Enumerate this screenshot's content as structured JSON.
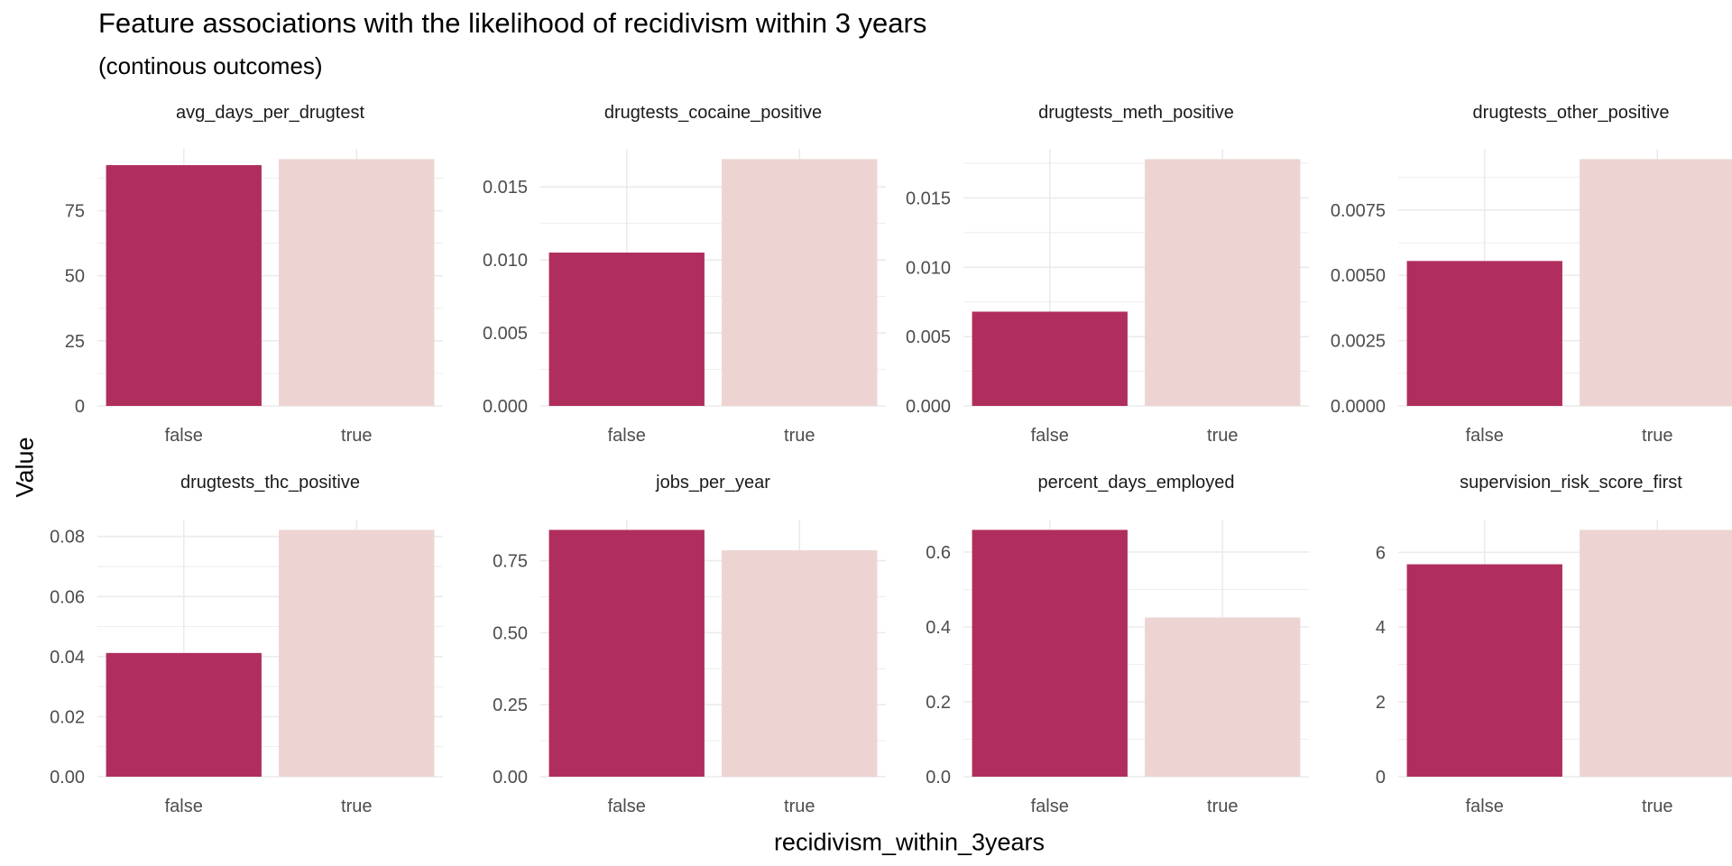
{
  "title": "Feature associations with the likelihood of recidivism within 3 years",
  "subtitle": "(continous outcomes)",
  "xlabel": "recidivism_within_3years",
  "ylabel": "Value",
  "colors": {
    "false": "#B02E5E",
    "true": "#EDD4D2",
    "grid": "#EBEBEB"
  },
  "chart_data": {
    "type": "bar",
    "categories": [
      "false",
      "true"
    ],
    "grid": true,
    "legend": "none",
    "facets": [
      {
        "name": "avg_days_per_drugtest",
        "values": [
          92.5,
          94.8
        ],
        "ylim": [
          0,
          94.8
        ],
        "ticks": [
          {
            "v": 0,
            "label": "0"
          },
          {
            "v": 25,
            "label": "25"
          },
          {
            "v": 50,
            "label": "50"
          },
          {
            "v": 75,
            "label": "75"
          }
        ]
      },
      {
        "name": "drugtests_cocaine_positive",
        "values": [
          0.0105,
          0.0169
        ],
        "ylim": [
          0,
          0.0169
        ],
        "ticks": [
          {
            "v": 0,
            "label": "0.000"
          },
          {
            "v": 0.005,
            "label": "0.005"
          },
          {
            "v": 0.01,
            "label": "0.010"
          },
          {
            "v": 0.015,
            "label": "0.015"
          }
        ]
      },
      {
        "name": "drugtests_meth_positive",
        "values": [
          0.0068,
          0.0178
        ],
        "ylim": [
          0,
          0.0178
        ],
        "ticks": [
          {
            "v": 0,
            "label": "0.000"
          },
          {
            "v": 0.005,
            "label": "0.005"
          },
          {
            "v": 0.01,
            "label": "0.010"
          },
          {
            "v": 0.015,
            "label": "0.015"
          }
        ]
      },
      {
        "name": "drugtests_other_positive",
        "values": [
          0.00555,
          0.00945
        ],
        "ylim": [
          0,
          0.00945
        ],
        "ticks": [
          {
            "v": 0,
            "label": "0.0000"
          },
          {
            "v": 0.0025,
            "label": "0.0025"
          },
          {
            "v": 0.005,
            "label": "0.0050"
          },
          {
            "v": 0.0075,
            "label": "0.0075"
          }
        ]
      },
      {
        "name": "drugtests_thc_positive",
        "values": [
          0.0412,
          0.0822
        ],
        "ylim": [
          0,
          0.0822
        ],
        "ticks": [
          {
            "v": 0,
            "label": "0.00"
          },
          {
            "v": 0.02,
            "label": "0.02"
          },
          {
            "v": 0.04,
            "label": "0.04"
          },
          {
            "v": 0.06,
            "label": "0.06"
          },
          {
            "v": 0.08,
            "label": "0.08"
          }
        ]
      },
      {
        "name": "jobs_per_year",
        "values": [
          0.857,
          0.786
        ],
        "ylim": [
          0,
          0.857
        ],
        "ticks": [
          {
            "v": 0,
            "label": "0.00"
          },
          {
            "v": 0.25,
            "label": "0.25"
          },
          {
            "v": 0.5,
            "label": "0.50"
          },
          {
            "v": 0.75,
            "label": "0.75"
          }
        ]
      },
      {
        "name": "percent_days_employed",
        "values": [
          0.659,
          0.425
        ],
        "ylim": [
          0,
          0.659
        ],
        "ticks": [
          {
            "v": 0,
            "label": "0.0"
          },
          {
            "v": 0.2,
            "label": "0.2"
          },
          {
            "v": 0.4,
            "label": "0.4"
          },
          {
            "v": 0.6,
            "label": "0.6"
          }
        ]
      },
      {
        "name": "supervision_risk_score_first",
        "values": [
          5.68,
          6.6
        ],
        "ylim": [
          0,
          6.6
        ],
        "ticks": [
          {
            "v": 0,
            "label": "0"
          },
          {
            "v": 2,
            "label": "2"
          },
          {
            "v": 4,
            "label": "4"
          },
          {
            "v": 6,
            "label": "6"
          }
        ]
      }
    ]
  }
}
